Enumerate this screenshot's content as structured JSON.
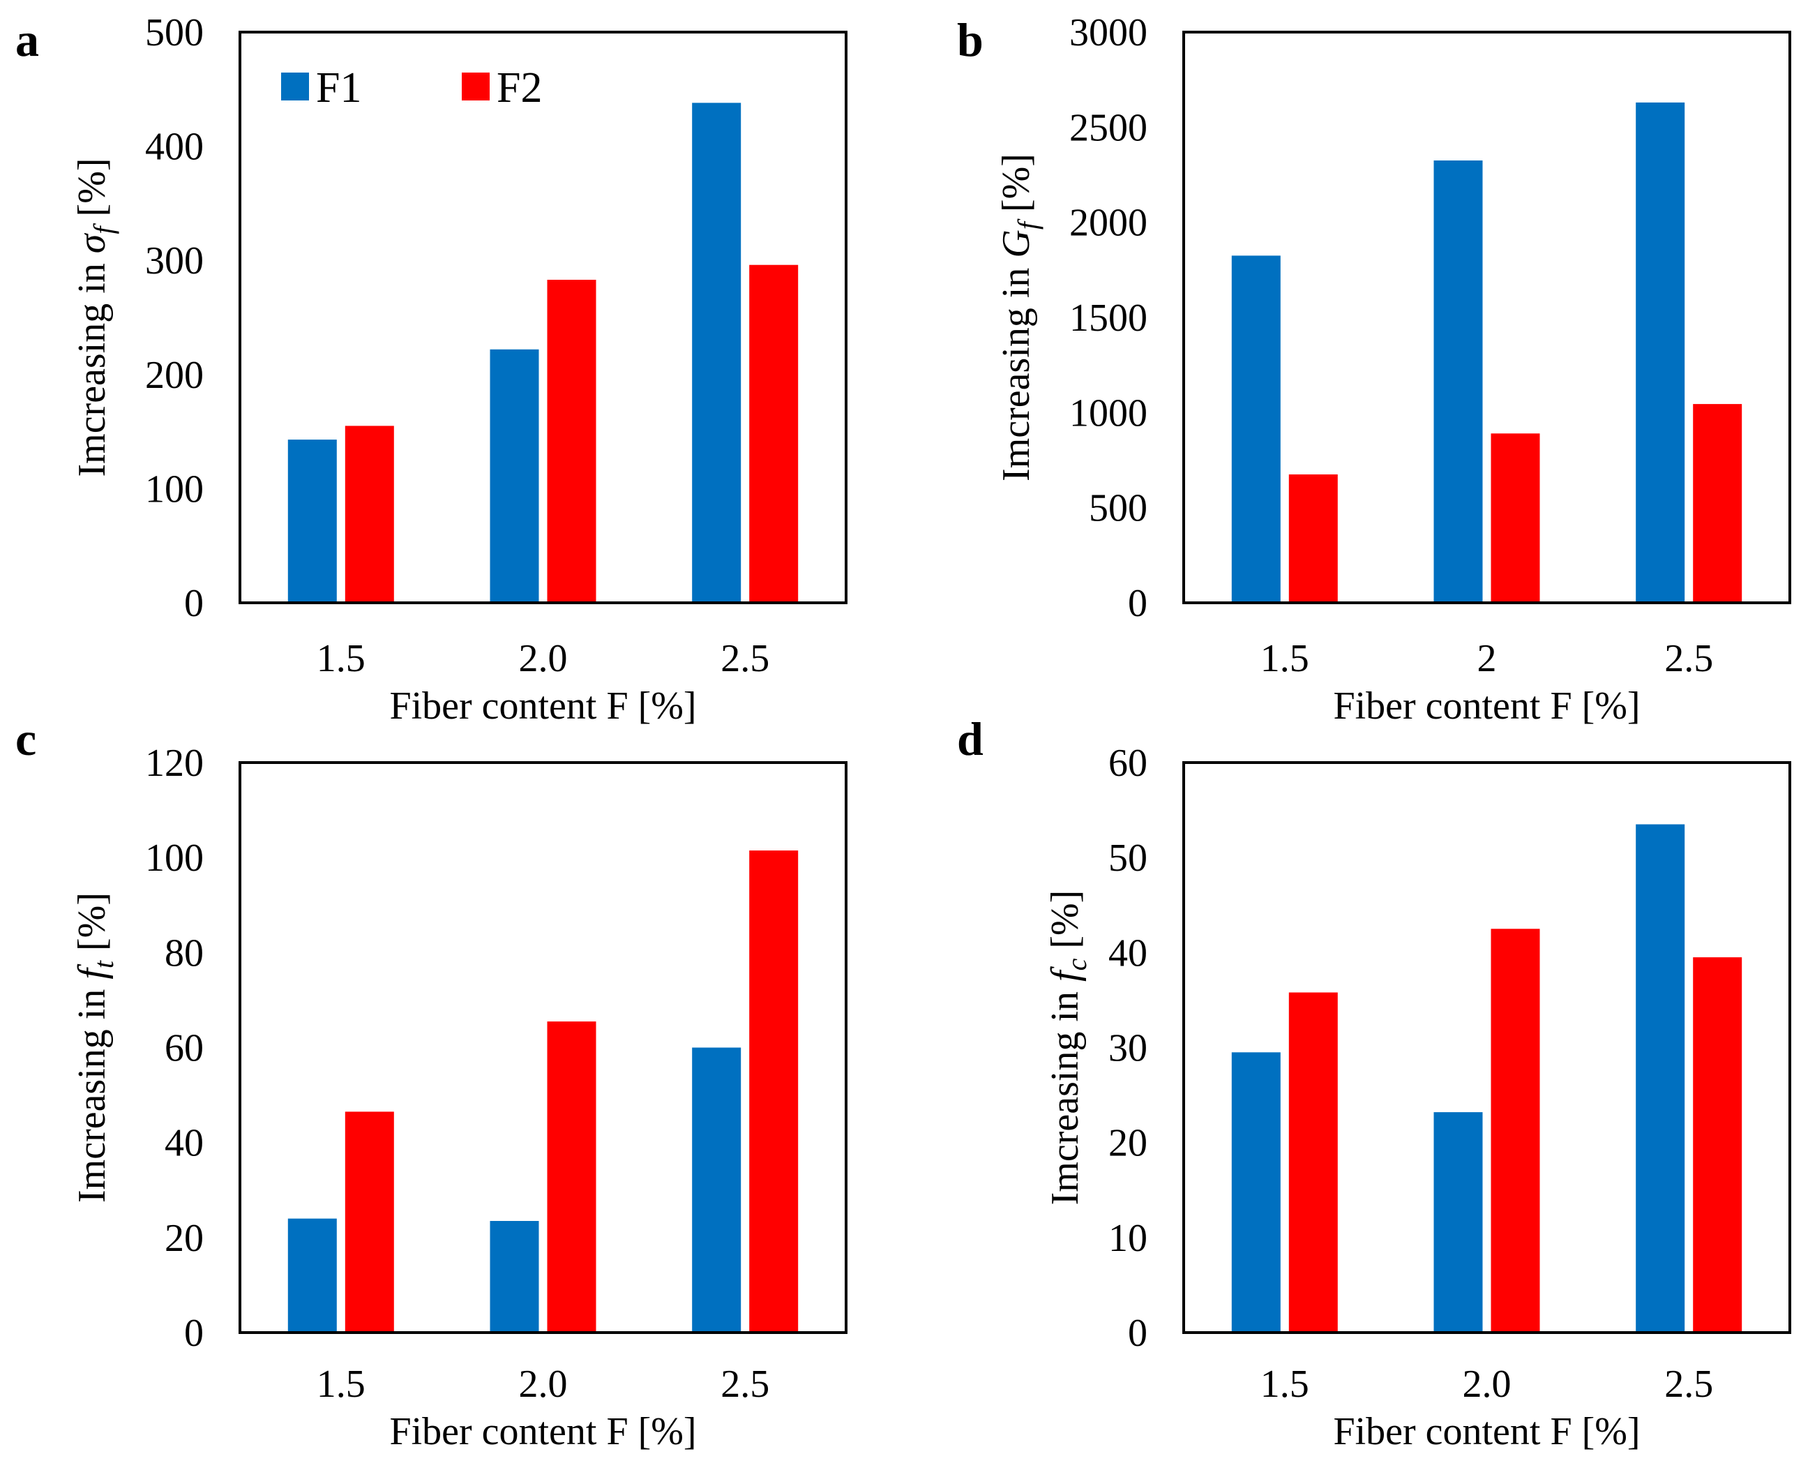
{
  "colors": {
    "F1": "#0070C0",
    "F2": "#FF0000",
    "frame": "#000000"
  },
  "legend": [
    "F1",
    "F2"
  ],
  "chart_data": [
    {
      "type": "bar",
      "panel_label": "a",
      "title": "",
      "categories": [
        "1.5",
        "2.0",
        "2.5"
      ],
      "series": [
        {
          "name": "F1",
          "values": [
            143,
            222,
            438
          ]
        },
        {
          "name": "F2",
          "values": [
            155,
            283,
            296
          ]
        }
      ],
      "xlabel": "Fiber content F [%]",
      "ylabel": {
        "prefix": "Imcreasing in ",
        "symbol": "σ",
        "subscript": "f",
        "suffix": " [%]"
      },
      "ylim": [
        0,
        500
      ],
      "yticks": [
        "0",
        "100",
        "200",
        "300",
        "400",
        "500"
      ],
      "legend": true,
      "legend_position": "top-left",
      "grid": false
    },
    {
      "type": "bar",
      "panel_label": "b",
      "title": "",
      "categories": [
        "1.5",
        "2",
        "2.5"
      ],
      "series": [
        {
          "name": "F1",
          "values": [
            1825,
            2325,
            2630
          ]
        },
        {
          "name": "F2",
          "values": [
            675,
            890,
            1045
          ]
        }
      ],
      "xlabel": "Fiber content F [%]",
      "ylabel": {
        "prefix": "Imcreasing in ",
        "symbol": "G",
        "subscript": "f",
        "suffix": " [%]"
      },
      "ylim": [
        0,
        3000
      ],
      "yticks": [
        "0",
        "500",
        "1000",
        "1500",
        "2000",
        "2500",
        "3000"
      ],
      "legend": false,
      "grid": false
    },
    {
      "type": "bar",
      "panel_label": "c",
      "title": "",
      "categories": [
        "1.5",
        "2.0",
        "2.5"
      ],
      "series": [
        {
          "name": "F1",
          "values": [
            24,
            23.5,
            60
          ]
        },
        {
          "name": "F2",
          "values": [
            46.5,
            65.5,
            101.5
          ]
        }
      ],
      "xlabel": "Fiber content F [%]",
      "ylabel": {
        "prefix": "Imcreasing in ",
        "symbol": "f",
        "subscript": "t",
        "suffix": " [%]"
      },
      "ylim": [
        0,
        120
      ],
      "yticks": [
        "0",
        "20",
        "40",
        "60",
        "80",
        "100",
        "120"
      ],
      "legend": false,
      "grid": false
    },
    {
      "type": "bar",
      "panel_label": "d",
      "title": "",
      "categories": [
        "1.5",
        "2.0",
        "2.5"
      ],
      "series": [
        {
          "name": "F1",
          "values": [
            29.5,
            23.2,
            53.5
          ]
        },
        {
          "name": "F2",
          "values": [
            35.8,
            42.5,
            39.5
          ]
        }
      ],
      "xlabel": "Fiber content F [%]",
      "ylabel": {
        "prefix": "Imcreasing in ",
        "symbol": "f",
        "subscript": "c",
        "suffix": " [%]"
      },
      "ylim": [
        0,
        60
      ],
      "yticks": [
        "0",
        "10",
        "20",
        "30",
        "40",
        "50",
        "60"
      ],
      "legend": false,
      "grid": false
    }
  ]
}
